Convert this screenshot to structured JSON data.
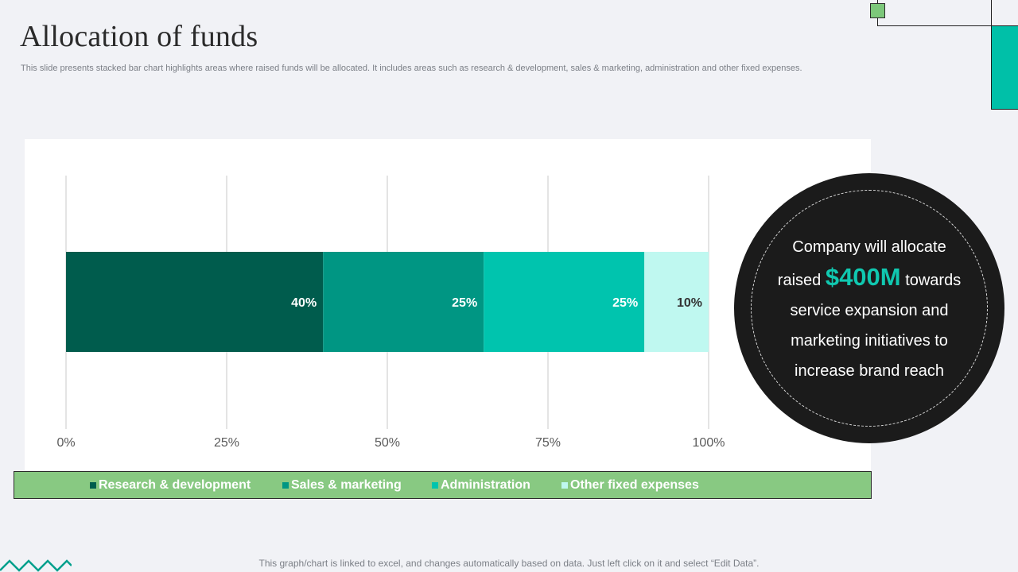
{
  "slide": {
    "title": "Allocation of funds",
    "subtitle": "This slide presents stacked bar chart highlights areas where raised funds will be allocated. It includes areas such as research & development, sales & marketing, administration and other fixed expenses.",
    "footer": "This graph/chart is linked to excel,  and changes automatically based on data. Just left click on it and select “Edit Data”."
  },
  "callout": {
    "line1": "Company  will allocate",
    "line2_pre": "raised",
    "amount": "$400M",
    "line2_post": "towards",
    "line3": "service expansion  and",
    "line4": "marketing  initiatives to",
    "line5": "increase brand  reach"
  },
  "chart_data": {
    "type": "bar",
    "orientation": "horizontal",
    "stacked": true,
    "categories": [
      ""
    ],
    "series": [
      {
        "name": "Research & development",
        "values": [
          40
        ],
        "label": "40%",
        "color": "#005c4d"
      },
      {
        "name": "Sales & marketing",
        "values": [
          25
        ],
        "label": "25%",
        "color": "#009683"
      },
      {
        "name": "Administration",
        "values": [
          25
        ],
        "label": "25%",
        "color": "#00c4ae"
      },
      {
        "name": "Other fixed expenses",
        "values": [
          10
        ],
        "label": "10%",
        "color": "#bff8f0"
      }
    ],
    "xlim": [
      0,
      100
    ],
    "x_ticks": [
      "0%",
      "25%",
      "50%",
      "75%",
      "100%"
    ],
    "x_tick_values": [
      0,
      25,
      50,
      75,
      100
    ],
    "grid": true,
    "legend_position": "bottom"
  },
  "colors": {
    "accent_teal": "#00c0a8",
    "legend_bg": "#88c982",
    "callout_bg": "#1b1b1b"
  }
}
